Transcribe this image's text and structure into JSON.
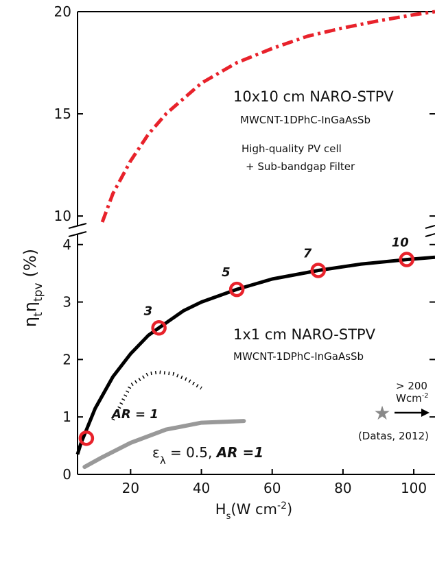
{
  "chart_data": [
    {
      "panel": "upper",
      "type": "line",
      "ylim": [
        9.5,
        20
      ],
      "xlim": [
        5,
        106
      ],
      "yticks": [
        10,
        15,
        20
      ],
      "series": [
        {
          "name": "10x10 cm NARO-STPV",
          "style": "dash-dot",
          "color": "#e8222b",
          "x": [
            12,
            15,
            20,
            25,
            30,
            40,
            50,
            60,
            70,
            80,
            90,
            100,
            106
          ],
          "y": [
            9.7,
            11.1,
            12.7,
            14.0,
            15.0,
            16.5,
            17.5,
            18.2,
            18.8,
            19.2,
            19.55,
            19.85,
            20.0
          ]
        }
      ],
      "annotations": {
        "title": "10x10 cm NARO-STPV",
        "subtitle": "MWCNT-1DPhC-InGaAsSb",
        "note_line1": "High-quality PV cell",
        "note_line2": "+ Sub-bandgap Filter"
      }
    },
    {
      "panel": "lower",
      "type": "line",
      "xlabel_main": "H",
      "xlabel_sub": "s",
      "xlabel_unit": "(W cm",
      "xlabel_exp": "-2",
      "xlabel_close": ")",
      "ylabel_main": "η",
      "ylabel_sub1": "t",
      "ylabel_mid": "η",
      "ylabel_sub2": "tpv",
      "ylabel_unit": "(%)",
      "xlim": [
        5,
        106
      ],
      "ylim": [
        0,
        4.2
      ],
      "xticks": [
        20,
        40,
        60,
        80,
        100
      ],
      "yticks": [
        0,
        1,
        2,
        3,
        4
      ],
      "series": [
        {
          "name": "1x1 cm NARO-STPV",
          "style": "solid",
          "color": "#000000",
          "x": [
            5,
            6,
            8,
            10,
            15,
            20,
            25,
            28,
            35,
            40,
            50,
            60,
            73,
            85,
            98,
            106
          ],
          "y": [
            0.35,
            0.55,
            0.85,
            1.15,
            1.7,
            2.1,
            2.42,
            2.55,
            2.85,
            3.0,
            3.22,
            3.4,
            3.55,
            3.66,
            3.74,
            3.78
          ]
        },
        {
          "name": "AR = 1",
          "style": "dotted",
          "color": "#000000",
          "x": [
            15,
            20,
            25,
            28,
            32,
            36,
            40
          ],
          "y": [
            0.95,
            1.55,
            1.75,
            1.78,
            1.75,
            1.65,
            1.5
          ]
        },
        {
          "name": "ελ = 0.5, AR =1",
          "style": "solid",
          "color": "#999999",
          "x": [
            7,
            12,
            20,
            30,
            40,
            52
          ],
          "y": [
            0.13,
            0.3,
            0.55,
            0.78,
            0.9,
            0.93
          ]
        }
      ],
      "markers": [
        {
          "x": 7.5,
          "y": 0.63,
          "label": ""
        },
        {
          "x": 28,
          "y": 2.55,
          "label": "3"
        },
        {
          "x": 50,
          "y": 3.22,
          "label": "5"
        },
        {
          "x": 73,
          "y": 3.55,
          "label": "7"
        },
        {
          "x": 98,
          "y": 3.74,
          "label": "10"
        }
      ],
      "reference_point": {
        "x": 91,
        "y": 1.22,
        "label": "(Datas, 2012)",
        "arrow_line1": "> 200",
        "arrow_line2": "Wcm",
        "arrow_exp": "-2"
      },
      "annotations": {
        "title": "1x1 cm NARO-STPV",
        "subtitle": "MWCNT-1DPhC-InGaAsSb",
        "ar_label": "AR = 1",
        "gray_label_main": "ε",
        "gray_label_sub": "λ",
        "gray_label_rest": " = 0.5, ",
        "gray_label_bold": "AR =1"
      }
    }
  ]
}
